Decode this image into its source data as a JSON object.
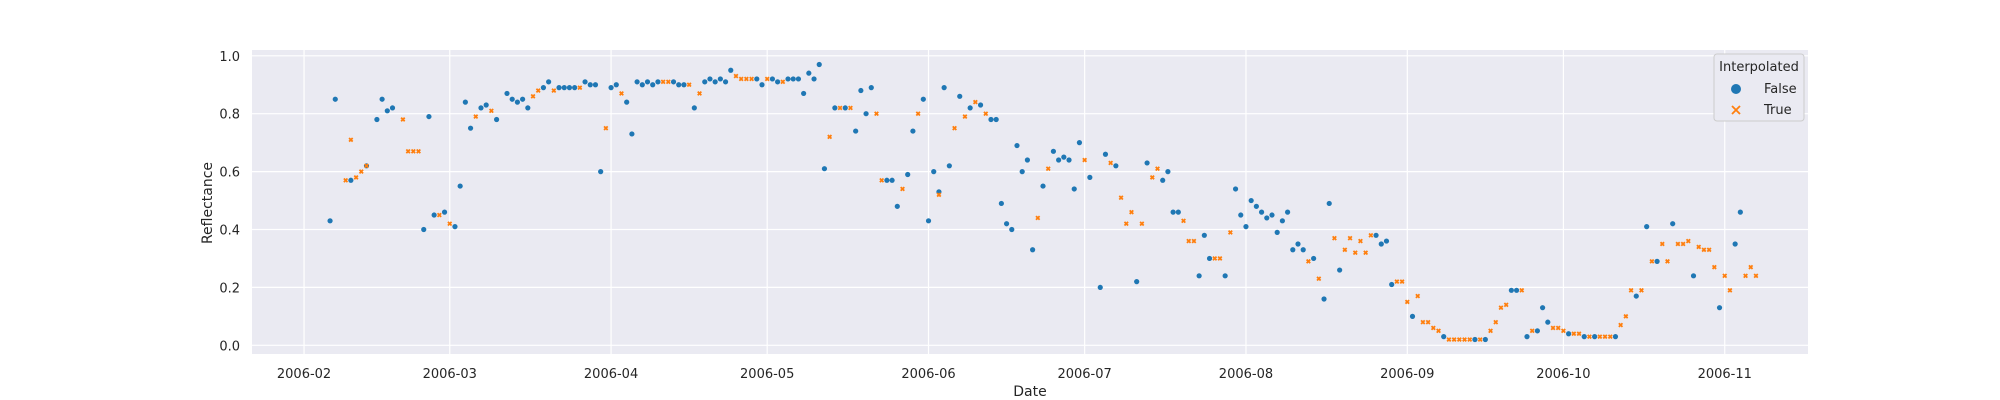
{
  "chart_data": {
    "type": "scatter",
    "xlabel": "Date",
    "ylabel": "Reflectance",
    "xlim": [
      "2006-01-22",
      "2006-11-17"
    ],
    "ylim": [
      -0.03,
      1.02
    ],
    "x_ticks": [
      "2006-02-01",
      "2006-03-01",
      "2006-04-01",
      "2006-05-01",
      "2006-06-01",
      "2006-07-01",
      "2006-08-01",
      "2006-09-01",
      "2006-10-01",
      "2006-11-01"
    ],
    "x_tick_labels": [
      "2006-02",
      "2006-03",
      "2006-04",
      "2006-05",
      "2006-06",
      "2006-07",
      "2006-08",
      "2006-09",
      "2006-10",
      "2006-11"
    ],
    "y_ticks": [
      0.0,
      0.2,
      0.4,
      0.6,
      0.8,
      1.0
    ],
    "y_tick_labels": [
      "0.0",
      "0.2",
      "0.4",
      "0.6",
      "0.8",
      "1.0"
    ],
    "grid": true,
    "legend": {
      "title": "Interpolated",
      "placement": "top-right",
      "entries": [
        "False",
        "True"
      ]
    },
    "series": [
      {
        "name": "False",
        "color": "#1f77b4",
        "marker": "circle",
        "points": [
          [
            "2006-02-06",
            0.43
          ],
          [
            "2006-02-07",
            0.85
          ],
          [
            "2006-02-10",
            0.57
          ],
          [
            "2006-02-13",
            0.62
          ],
          [
            "2006-02-15",
            0.78
          ],
          [
            "2006-02-16",
            0.85
          ],
          [
            "2006-02-17",
            0.81
          ],
          [
            "2006-02-18",
            0.82
          ],
          [
            "2006-02-24",
            0.4
          ],
          [
            "2006-02-25",
            0.79
          ],
          [
            "2006-02-26",
            0.45
          ],
          [
            "2006-02-28",
            0.46
          ],
          [
            "2006-03-02",
            0.41
          ],
          [
            "2006-03-03",
            0.55
          ],
          [
            "2006-03-04",
            0.84
          ],
          [
            "2006-03-05",
            0.75
          ],
          [
            "2006-03-07",
            0.82
          ],
          [
            "2006-03-08",
            0.83
          ],
          [
            "2006-03-10",
            0.78
          ],
          [
            "2006-03-12",
            0.87
          ],
          [
            "2006-03-13",
            0.85
          ],
          [
            "2006-03-14",
            0.84
          ],
          [
            "2006-03-15",
            0.85
          ],
          [
            "2006-03-16",
            0.82
          ],
          [
            "2006-03-19",
            0.89
          ],
          [
            "2006-03-20",
            0.91
          ],
          [
            "2006-03-22",
            0.89
          ],
          [
            "2006-03-23",
            0.89
          ],
          [
            "2006-03-24",
            0.89
          ],
          [
            "2006-03-25",
            0.89
          ],
          [
            "2006-03-27",
            0.91
          ],
          [
            "2006-03-28",
            0.9
          ],
          [
            "2006-03-29",
            0.9
          ],
          [
            "2006-03-30",
            0.6
          ],
          [
            "2006-04-01",
            0.89
          ],
          [
            "2006-04-02",
            0.9
          ],
          [
            "2006-04-04",
            0.84
          ],
          [
            "2006-04-05",
            0.73
          ],
          [
            "2006-04-06",
            0.91
          ],
          [
            "2006-04-07",
            0.9
          ],
          [
            "2006-04-08",
            0.91
          ],
          [
            "2006-04-09",
            0.9
          ],
          [
            "2006-04-10",
            0.91
          ],
          [
            "2006-04-13",
            0.91
          ],
          [
            "2006-04-14",
            0.9
          ],
          [
            "2006-04-15",
            0.9
          ],
          [
            "2006-04-17",
            0.82
          ],
          [
            "2006-04-19",
            0.91
          ],
          [
            "2006-04-20",
            0.92
          ],
          [
            "2006-04-21",
            0.91
          ],
          [
            "2006-04-22",
            0.92
          ],
          [
            "2006-04-23",
            0.91
          ],
          [
            "2006-04-24",
            0.95
          ],
          [
            "2006-04-29",
            0.92
          ],
          [
            "2006-04-30",
            0.9
          ],
          [
            "2006-05-02",
            0.92
          ],
          [
            "2006-05-03",
            0.91
          ],
          [
            "2006-05-05",
            0.92
          ],
          [
            "2006-05-06",
            0.92
          ],
          [
            "2006-05-07",
            0.92
          ],
          [
            "2006-05-08",
            0.87
          ],
          [
            "2006-05-09",
            0.94
          ],
          [
            "2006-05-10",
            0.92
          ],
          [
            "2006-05-11",
            0.97
          ],
          [
            "2006-05-12",
            0.61
          ],
          [
            "2006-05-14",
            0.82
          ],
          [
            "2006-05-16",
            0.82
          ],
          [
            "2006-05-18",
            0.74
          ],
          [
            "2006-05-19",
            0.88
          ],
          [
            "2006-05-20",
            0.8
          ],
          [
            "2006-05-21",
            0.89
          ],
          [
            "2006-05-24",
            0.57
          ],
          [
            "2006-05-25",
            0.57
          ],
          [
            "2006-05-26",
            0.48
          ],
          [
            "2006-05-28",
            0.59
          ],
          [
            "2006-05-29",
            0.74
          ],
          [
            "2006-05-31",
            0.85
          ],
          [
            "2006-06-01",
            0.43
          ],
          [
            "2006-06-02",
            0.6
          ],
          [
            "2006-06-03",
            0.53
          ],
          [
            "2006-06-04",
            0.89
          ],
          [
            "2006-06-05",
            0.62
          ],
          [
            "2006-06-07",
            0.86
          ],
          [
            "2006-06-09",
            0.82
          ],
          [
            "2006-06-11",
            0.83
          ],
          [
            "2006-06-13",
            0.78
          ],
          [
            "2006-06-14",
            0.78
          ],
          [
            "2006-06-15",
            0.49
          ],
          [
            "2006-06-16",
            0.42
          ],
          [
            "2006-06-17",
            0.4
          ],
          [
            "2006-06-18",
            0.69
          ],
          [
            "2006-06-19",
            0.6
          ],
          [
            "2006-06-20",
            0.64
          ],
          [
            "2006-06-21",
            0.33
          ],
          [
            "2006-06-23",
            0.55
          ],
          [
            "2006-06-25",
            0.67
          ],
          [
            "2006-06-26",
            0.64
          ],
          [
            "2006-06-27",
            0.65
          ],
          [
            "2006-06-28",
            0.64
          ],
          [
            "2006-06-29",
            0.54
          ],
          [
            "2006-06-30",
            0.7
          ],
          [
            "2006-07-02",
            0.58
          ],
          [
            "2006-07-04",
            0.2
          ],
          [
            "2006-07-05",
            0.66
          ],
          [
            "2006-07-07",
            0.62
          ],
          [
            "2006-07-11",
            0.22
          ],
          [
            "2006-07-13",
            0.63
          ],
          [
            "2006-07-16",
            0.57
          ],
          [
            "2006-07-17",
            0.6
          ],
          [
            "2006-07-18",
            0.46
          ],
          [
            "2006-07-19",
            0.46
          ],
          [
            "2006-07-23",
            0.24
          ],
          [
            "2006-07-24",
            0.38
          ],
          [
            "2006-07-25",
            0.3
          ],
          [
            "2006-07-28",
            0.24
          ],
          [
            "2006-07-30",
            0.54
          ],
          [
            "2006-07-31",
            0.45
          ],
          [
            "2006-08-01",
            0.41
          ],
          [
            "2006-08-02",
            0.5
          ],
          [
            "2006-08-03",
            0.48
          ],
          [
            "2006-08-04",
            0.46
          ],
          [
            "2006-08-05",
            0.44
          ],
          [
            "2006-08-06",
            0.45
          ],
          [
            "2006-08-07",
            0.39
          ],
          [
            "2006-08-08",
            0.43
          ],
          [
            "2006-08-09",
            0.46
          ],
          [
            "2006-08-10",
            0.33
          ],
          [
            "2006-08-11",
            0.35
          ],
          [
            "2006-08-12",
            0.33
          ],
          [
            "2006-08-14",
            0.3
          ],
          [
            "2006-08-16",
            0.16
          ],
          [
            "2006-08-17",
            0.49
          ],
          [
            "2006-08-19",
            0.26
          ],
          [
            "2006-08-26",
            0.38
          ],
          [
            "2006-08-27",
            0.35
          ],
          [
            "2006-08-28",
            0.36
          ],
          [
            "2006-08-29",
            0.21
          ],
          [
            "2006-09-02",
            0.1
          ],
          [
            "2006-09-08",
            0.03
          ],
          [
            "2006-09-14",
            0.02
          ],
          [
            "2006-09-16",
            0.02
          ],
          [
            "2006-09-21",
            0.19
          ],
          [
            "2006-09-22",
            0.19
          ],
          [
            "2006-09-24",
            0.03
          ],
          [
            "2006-09-26",
            0.05
          ],
          [
            "2006-09-27",
            0.13
          ],
          [
            "2006-09-28",
            0.08
          ],
          [
            "2006-10-02",
            0.04
          ],
          [
            "2006-10-05",
            0.03
          ],
          [
            "2006-10-07",
            0.03
          ],
          [
            "2006-10-11",
            0.03
          ],
          [
            "2006-10-15",
            0.17
          ],
          [
            "2006-10-17",
            0.41
          ],
          [
            "2006-10-19",
            0.29
          ],
          [
            "2006-10-22",
            0.42
          ],
          [
            "2006-10-26",
            0.24
          ],
          [
            "2006-10-31",
            0.13
          ],
          [
            "2006-11-03",
            0.35
          ],
          [
            "2006-11-04",
            0.46
          ]
        ]
      },
      {
        "name": "True",
        "color": "#ff7f0e",
        "marker": "x",
        "points": [
          [
            "2006-02-09",
            0.57
          ],
          [
            "2006-02-10",
            0.71
          ],
          [
            "2006-02-11",
            0.58
          ],
          [
            "2006-02-12",
            0.6
          ],
          [
            "2006-02-13",
            0.62
          ],
          [
            "2006-02-20",
            0.78
          ],
          [
            "2006-02-21",
            0.67
          ],
          [
            "2006-02-22",
            0.67
          ],
          [
            "2006-02-23",
            0.67
          ],
          [
            "2006-02-27",
            0.45
          ],
          [
            "2006-03-01",
            0.42
          ],
          [
            "2006-03-06",
            0.79
          ],
          [
            "2006-03-09",
            0.81
          ],
          [
            "2006-03-17",
            0.86
          ],
          [
            "2006-03-18",
            0.88
          ],
          [
            "2006-03-21",
            0.88
          ],
          [
            "2006-03-26",
            0.89
          ],
          [
            "2006-03-31",
            0.75
          ],
          [
            "2006-04-03",
            0.87
          ],
          [
            "2006-04-11",
            0.91
          ],
          [
            "2006-04-12",
            0.91
          ],
          [
            "2006-04-16",
            0.9
          ],
          [
            "2006-04-18",
            0.87
          ],
          [
            "2006-04-25",
            0.93
          ],
          [
            "2006-04-26",
            0.92
          ],
          [
            "2006-04-27",
            0.92
          ],
          [
            "2006-04-28",
            0.92
          ],
          [
            "2006-05-01",
            0.92
          ],
          [
            "2006-05-04",
            0.91
          ],
          [
            "2006-05-13",
            0.72
          ],
          [
            "2006-05-15",
            0.82
          ],
          [
            "2006-05-17",
            0.82
          ],
          [
            "2006-05-22",
            0.8
          ],
          [
            "2006-05-23",
            0.57
          ],
          [
            "2006-05-27",
            0.54
          ],
          [
            "2006-05-30",
            0.8
          ],
          [
            "2006-06-03",
            0.52
          ],
          [
            "2006-06-06",
            0.75
          ],
          [
            "2006-06-08",
            0.79
          ],
          [
            "2006-06-10",
            0.84
          ],
          [
            "2006-06-12",
            0.8
          ],
          [
            "2006-06-22",
            0.44
          ],
          [
            "2006-06-24",
            0.61
          ],
          [
            "2006-07-01",
            0.64
          ],
          [
            "2006-07-06",
            0.63
          ],
          [
            "2006-07-08",
            0.51
          ],
          [
            "2006-07-09",
            0.42
          ],
          [
            "2006-07-10",
            0.46
          ],
          [
            "2006-07-12",
            0.42
          ],
          [
            "2006-07-14",
            0.58
          ],
          [
            "2006-07-15",
            0.61
          ],
          [
            "2006-07-20",
            0.43
          ],
          [
            "2006-07-21",
            0.36
          ],
          [
            "2006-07-22",
            0.36
          ],
          [
            "2006-07-26",
            0.3
          ],
          [
            "2006-07-27",
            0.3
          ],
          [
            "2006-07-29",
            0.39
          ],
          [
            "2006-08-13",
            0.29
          ],
          [
            "2006-08-15",
            0.23
          ],
          [
            "2006-08-18",
            0.37
          ],
          [
            "2006-08-20",
            0.33
          ],
          [
            "2006-08-21",
            0.37
          ],
          [
            "2006-08-22",
            0.32
          ],
          [
            "2006-08-23",
            0.36
          ],
          [
            "2006-08-24",
            0.32
          ],
          [
            "2006-08-25",
            0.38
          ],
          [
            "2006-08-30",
            0.22
          ],
          [
            "2006-08-31",
            0.22
          ],
          [
            "2006-09-01",
            0.15
          ],
          [
            "2006-09-03",
            0.17
          ],
          [
            "2006-09-04",
            0.08
          ],
          [
            "2006-09-05",
            0.08
          ],
          [
            "2006-09-06",
            0.06
          ],
          [
            "2006-09-07",
            0.05
          ],
          [
            "2006-09-09",
            0.02
          ],
          [
            "2006-09-10",
            0.02
          ],
          [
            "2006-09-11",
            0.02
          ],
          [
            "2006-09-12",
            0.02
          ],
          [
            "2006-09-13",
            0.02
          ],
          [
            "2006-09-15",
            0.02
          ],
          [
            "2006-09-17",
            0.05
          ],
          [
            "2006-09-18",
            0.08
          ],
          [
            "2006-09-19",
            0.13
          ],
          [
            "2006-09-20",
            0.14
          ],
          [
            "2006-09-23",
            0.19
          ],
          [
            "2006-09-25",
            0.05
          ],
          [
            "2006-09-29",
            0.06
          ],
          [
            "2006-09-30",
            0.06
          ],
          [
            "2006-10-01",
            0.05
          ],
          [
            "2006-10-03",
            0.04
          ],
          [
            "2006-10-04",
            0.04
          ],
          [
            "2006-10-06",
            0.03
          ],
          [
            "2006-10-08",
            0.03
          ],
          [
            "2006-10-09",
            0.03
          ],
          [
            "2006-10-10",
            0.03
          ],
          [
            "2006-10-12",
            0.07
          ],
          [
            "2006-10-13",
            0.1
          ],
          [
            "2006-10-14",
            0.19
          ],
          [
            "2006-10-16",
            0.19
          ],
          [
            "2006-10-18",
            0.29
          ],
          [
            "2006-10-20",
            0.35
          ],
          [
            "2006-10-21",
            0.29
          ],
          [
            "2006-10-23",
            0.35
          ],
          [
            "2006-10-24",
            0.35
          ],
          [
            "2006-10-25",
            0.36
          ],
          [
            "2006-10-27",
            0.34
          ],
          [
            "2006-10-28",
            0.33
          ],
          [
            "2006-10-29",
            0.33
          ],
          [
            "2006-10-30",
            0.27
          ],
          [
            "2006-11-01",
            0.24
          ],
          [
            "2006-11-02",
            0.19
          ],
          [
            "2006-11-05",
            0.24
          ],
          [
            "2006-11-06",
            0.27
          ],
          [
            "2006-11-07",
            0.24
          ]
        ]
      }
    ]
  }
}
